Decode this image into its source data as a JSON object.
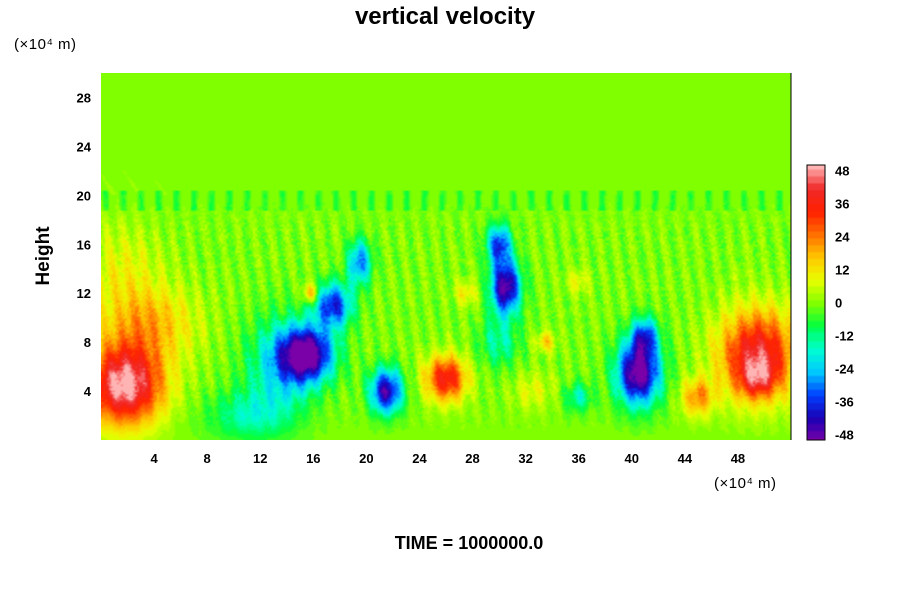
{
  "chart_data": {
    "type": "heatmap",
    "title": "vertical velocity",
    "ylabel": "Height",
    "x_unit_label": "(×10⁴ m)",
    "y_unit_label": "(×10⁴ m)",
    "footer": "TIME = 1000000.0",
    "xlim": [
      0,
      52
    ],
    "ylim": [
      0,
      30
    ],
    "x_ticks": [
      "4",
      "8",
      "12",
      "16",
      "20",
      "24",
      "28",
      "32",
      "36",
      "40",
      "44",
      "48"
    ],
    "y_ticks": [
      "4",
      "8",
      "12",
      "16",
      "20",
      "24",
      "28"
    ],
    "colorbar": {
      "vmin": -50,
      "vmax": 50,
      "tick_labels": [
        "48",
        "36",
        "24",
        "12",
        "0",
        "-12",
        "-24",
        "-36",
        "-48"
      ],
      "tick_values": [
        48,
        36,
        24,
        12,
        0,
        -12,
        -24,
        -36,
        -48
      ],
      "palette": [
        "#7a00a8",
        "#1a00b4",
        "#0040ff",
        "#00c8ff",
        "#00ffd0",
        "#00ff40",
        "#80ff00",
        "#e8ff00",
        "#ffc800",
        "#ff7000",
        "#ff2000",
        "#f02828",
        "#ffb4b4"
      ]
    },
    "background_value": 0,
    "upper_layer_base": 20,
    "features": [
      {
        "kind": "updraft",
        "x": 1.8,
        "y": 4.5,
        "sx": 2.8,
        "sy": 3.2,
        "value": 52
      },
      {
        "kind": "updraft",
        "x": 3.5,
        "y": 9.5,
        "sx": 3.5,
        "sy": 3.0,
        "value": 18
      },
      {
        "kind": "updraft",
        "x": 1.5,
        "y": 14,
        "sx": 3.0,
        "sy": 3.5,
        "value": 9
      },
      {
        "kind": "updraft",
        "x": 26.0,
        "y": 5.0,
        "sx": 1.5,
        "sy": 1.8,
        "value": 38
      },
      {
        "kind": "updraft",
        "x": 49.5,
        "y": 7.0,
        "sx": 2.8,
        "sy": 3.5,
        "value": 42
      },
      {
        "kind": "updraft",
        "x": 49.5,
        "y": 5.0,
        "sx": 1.4,
        "sy": 1.5,
        "value": 20
      },
      {
        "kind": "updraft",
        "x": 45.0,
        "y": 3.5,
        "sx": 1.2,
        "sy": 1.5,
        "value": 22
      },
      {
        "kind": "updraft",
        "x": 15.8,
        "y": 12.0,
        "sx": 0.6,
        "sy": 0.8,
        "value": 22
      },
      {
        "kind": "updraft",
        "x": 33.5,
        "y": 8.0,
        "sx": 0.7,
        "sy": 0.8,
        "value": 15
      },
      {
        "kind": "updraft",
        "x": 27.5,
        "y": 12.0,
        "sx": 0.8,
        "sy": 1.0,
        "value": 12
      },
      {
        "kind": "updraft",
        "x": 36.0,
        "y": 13.0,
        "sx": 0.8,
        "sy": 1.0,
        "value": 10
      },
      {
        "kind": "updraft",
        "x": 32.5,
        "y": 4.0,
        "sx": 1.5,
        "sy": 1.5,
        "value": 8
      },
      {
        "kind": "downdraft",
        "x": 15.5,
        "y": 7.0,
        "sx": 2.0,
        "sy": 2.2,
        "value": -52
      },
      {
        "kind": "downdraft",
        "x": 17.5,
        "y": 11.0,
        "sx": 1.4,
        "sy": 1.8,
        "value": -38
      },
      {
        "kind": "downdraft",
        "x": 19.5,
        "y": 14.5,
        "sx": 0.9,
        "sy": 1.8,
        "value": -30
      },
      {
        "kind": "downdraft",
        "x": 21.5,
        "y": 4.0,
        "sx": 1.2,
        "sy": 1.8,
        "value": -45
      },
      {
        "kind": "downdraft",
        "x": 13.5,
        "y": 6.0,
        "sx": 2.5,
        "sy": 4.0,
        "value": -20
      },
      {
        "kind": "downdraft",
        "x": 30.5,
        "y": 12.5,
        "sx": 1.1,
        "sy": 2.2,
        "value": -50
      },
      {
        "kind": "downdraft",
        "x": 30.0,
        "y": 16.0,
        "sx": 0.9,
        "sy": 1.6,
        "value": -35
      },
      {
        "kind": "downdraft",
        "x": 40.5,
        "y": 5.5,
        "sx": 1.6,
        "sy": 2.6,
        "value": -54
      },
      {
        "kind": "downdraft",
        "x": 41.0,
        "y": 8.5,
        "sx": 1.0,
        "sy": 1.5,
        "value": -30
      },
      {
        "kind": "downdraft",
        "x": 11.0,
        "y": 2.0,
        "sx": 3.0,
        "sy": 2.0,
        "value": -14
      },
      {
        "kind": "downdraft",
        "x": 30.0,
        "y": 8.0,
        "sx": 1.5,
        "sy": 2.0,
        "value": -14
      },
      {
        "kind": "downdraft",
        "x": 36.0,
        "y": 3.5,
        "sx": 1.0,
        "sy": 1.2,
        "value": -16
      }
    ]
  }
}
